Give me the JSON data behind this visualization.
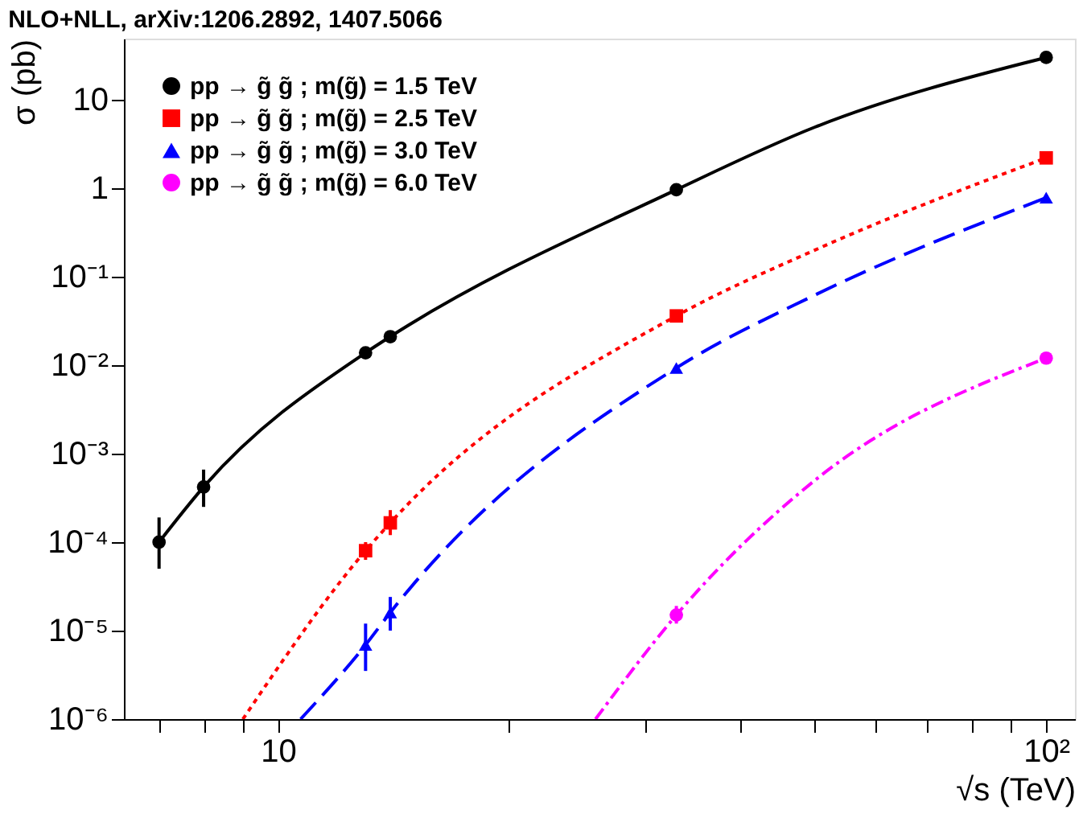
{
  "chart_data": {
    "type": "line",
    "title": "NLO+NLL, arXiv:1206.2892, 1407.5066",
    "xlabel": "√s (TeV)",
    "ylabel": "σ (pb)",
    "log": "xy",
    "grid": false,
    "legend": "top left",
    "xlim": [
      6.3,
      109
    ],
    "ylim": [
      1e-06,
      49
    ],
    "xticks": [
      {
        "value": 7,
        "label": null
      },
      {
        "value": 8,
        "label": null
      },
      {
        "value": 9,
        "label": null
      },
      10,
      {
        "value": 20,
        "label": null
      },
      {
        "value": 30,
        "label": null
      },
      {
        "value": 40,
        "label": null
      },
      {
        "value": 50,
        "label": null
      },
      {
        "value": 60,
        "label": null
      },
      {
        "value": 70,
        "label": null
      },
      {
        "value": 80,
        "label": null
      },
      {
        "value": 90,
        "label": null
      },
      {
        "value": 100,
        "label": "10²"
      }
    ],
    "yticks": [
      {
        "value": 1e-06,
        "label": "10⁻⁶"
      },
      {
        "value": 1e-05,
        "label": "10⁻⁵"
      },
      {
        "value": 0.0001,
        "label": "10⁻⁴"
      },
      {
        "value": 0.001,
        "label": "10⁻³"
      },
      {
        "value": 0.01,
        "label": "10⁻²"
      },
      {
        "value": 0.1,
        "label": "10⁻¹"
      },
      1,
      10
    ],
    "series": [
      {
        "color": "#000000",
        "line_style": "solid",
        "marker": "none",
        "x": [
          7,
          8,
          13,
          14,
          33,
          50,
          100
        ],
        "values": [
          0.0001,
          0.00042,
          0.0138,
          0.021,
          0.96,
          4.9,
          30
        ]
      },
      {
        "color": "#ff0000",
        "line_style": "dotted",
        "marker": "none",
        "x": [
          9.0,
          13,
          14,
          33,
          50,
          100
        ],
        "values": [
          1e-06,
          8e-05,
          0.000165,
          0.036,
          0.2,
          2.2
        ]
      },
      {
        "color": "#0000ff",
        "line_style": "dashed",
        "marker": "none",
        "x": [
          10.7,
          13,
          14,
          33,
          50,
          100
        ],
        "values": [
          1e-06,
          6.9e-06,
          1.6e-05,
          0.0093,
          0.062,
          0.78
        ]
      },
      {
        "color": "#ff00ff",
        "line_style": "dashdot",
        "marker": "none",
        "x": [
          25.9,
          33,
          50,
          100
        ],
        "values": [
          1e-06,
          1.5e-05,
          0.0005,
          0.012
        ]
      },
      {
        "type": "scatter",
        "name": "pp → g̃ g̃ ; m(g̃) = 1.5 TeV",
        "color": "#000000",
        "marker": "circle",
        "x": [
          7,
          8,
          13,
          14,
          33,
          100
        ],
        "values": [
          0.0001,
          0.00042,
          0.0138,
          0.021,
          0.96,
          30
        ],
        "errors": [
          [
            5e-05,
            0.00019
          ],
          [
            0.00025,
            0.00066
          ],
          null,
          null,
          null,
          null
        ]
      },
      {
        "type": "scatter",
        "name": "pp → g̃ g̃ ; m(g̃) = 2.5 TeV",
        "color": "#ff0000",
        "marker": "square",
        "x": [
          13,
          14,
          33,
          100
        ],
        "values": [
          8e-05,
          0.000165,
          0.036,
          2.2
        ],
        "errors": [
          [
            6.3e-05,
            0.0001
          ],
          [
            0.00012,
            0.00023
          ],
          null,
          null
        ]
      },
      {
        "type": "scatter",
        "name": "pp → g̃ g̃ ; m(g̃) = 3.0 TeV",
        "color": "#0000ff",
        "marker": "triangle",
        "x": [
          13,
          14,
          33,
          100
        ],
        "values": [
          6.9e-06,
          1.6e-05,
          0.0093,
          0.78
        ],
        "errors": [
          [
            3.5e-06,
            1.2e-05
          ],
          [
            1e-05,
            2.4e-05
          ],
          null,
          null
        ]
      },
      {
        "type": "scatter",
        "name": "pp → g̃ g̃ ; m(g̃) = 6.0 TeV",
        "color": "#ff00ff",
        "marker": "circle",
        "x": [
          33,
          100
        ],
        "values": [
          1.5e-05,
          0.012
        ],
        "errors": [
          [
            1.2e-05,
            1.9e-05
          ],
          null
        ]
      }
    ]
  }
}
